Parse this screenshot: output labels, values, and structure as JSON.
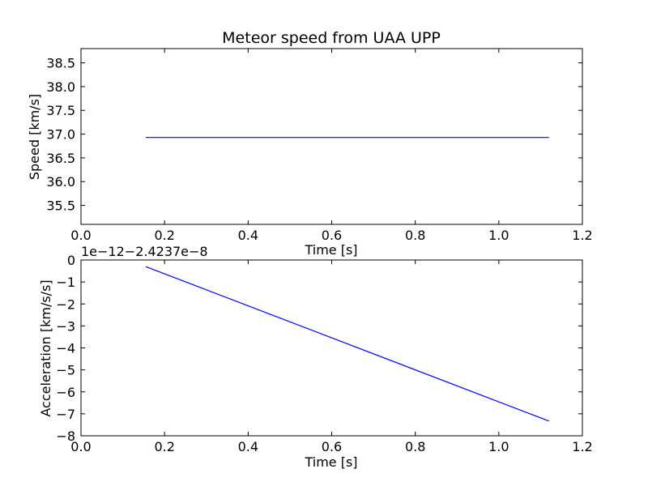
{
  "chart_data": [
    {
      "type": "line",
      "title": "Meteor speed from  UAA UPP",
      "xlabel": "Time [s]",
      "ylabel": "Speed [km/s]",
      "xlim": [
        0.0,
        1.2
      ],
      "ylim": [
        35.1,
        38.8
      ],
      "xticks": [
        "0.0",
        "0.2",
        "0.4",
        "0.6",
        "0.8",
        "1.0",
        "1.2"
      ],
      "yticks": [
        "35.5",
        "36.0",
        "36.5",
        "37.0",
        "37.5",
        "38.0",
        "38.5"
      ],
      "grid": false,
      "series": [
        {
          "color": "#0000ff",
          "x": [
            0.155,
            1.12
          ],
          "y": [
            36.93,
            36.93
          ]
        }
      ]
    },
    {
      "type": "line",
      "offset_text": "1e−12−2.4237e−8",
      "xlabel": "Time [s]",
      "ylabel": "Acceleration [km/s/s]",
      "xlim": [
        0.0,
        1.2
      ],
      "ylim": [
        -8,
        0
      ],
      "xticks": [
        "0.0",
        "0.2",
        "0.4",
        "0.6",
        "0.8",
        "1.0",
        "1.2"
      ],
      "yticks": [
        "−8",
        "−7",
        "−6",
        "−5",
        "−4",
        "−3",
        "−2",
        "−1",
        "0"
      ],
      "grid": false,
      "series": [
        {
          "color": "#0000ff",
          "x": [
            0.155,
            1.12
          ],
          "y": [
            -0.3,
            -7.33
          ]
        }
      ]
    }
  ]
}
